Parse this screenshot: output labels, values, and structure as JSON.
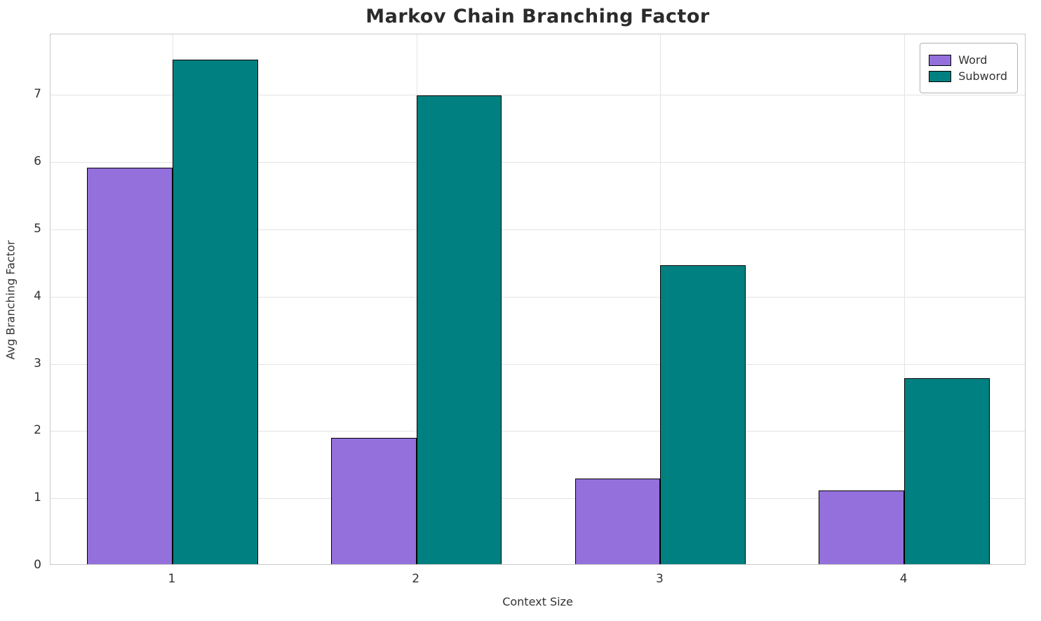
{
  "chart_data": {
    "type": "bar",
    "title": "Markov Chain Branching Factor",
    "xlabel": "Context Size",
    "ylabel": "Avg Branching Factor",
    "categories": [
      "1",
      "2",
      "3",
      "4"
    ],
    "series": [
      {
        "name": "Word",
        "color": "#9370DB",
        "values": [
          5.9,
          1.88,
          1.27,
          1.1
        ]
      },
      {
        "name": "Subword",
        "color": "#008080",
        "values": [
          7.5,
          6.97,
          4.45,
          2.77
        ]
      }
    ],
    "ylim": [
      0,
      7.9
    ],
    "yticks": [
      0,
      1,
      2,
      3,
      4,
      5,
      6,
      7
    ],
    "grid": true,
    "legend_position": "top-right",
    "bar_edge_color": "#000000",
    "bar_group_width_fraction": 0.7
  }
}
